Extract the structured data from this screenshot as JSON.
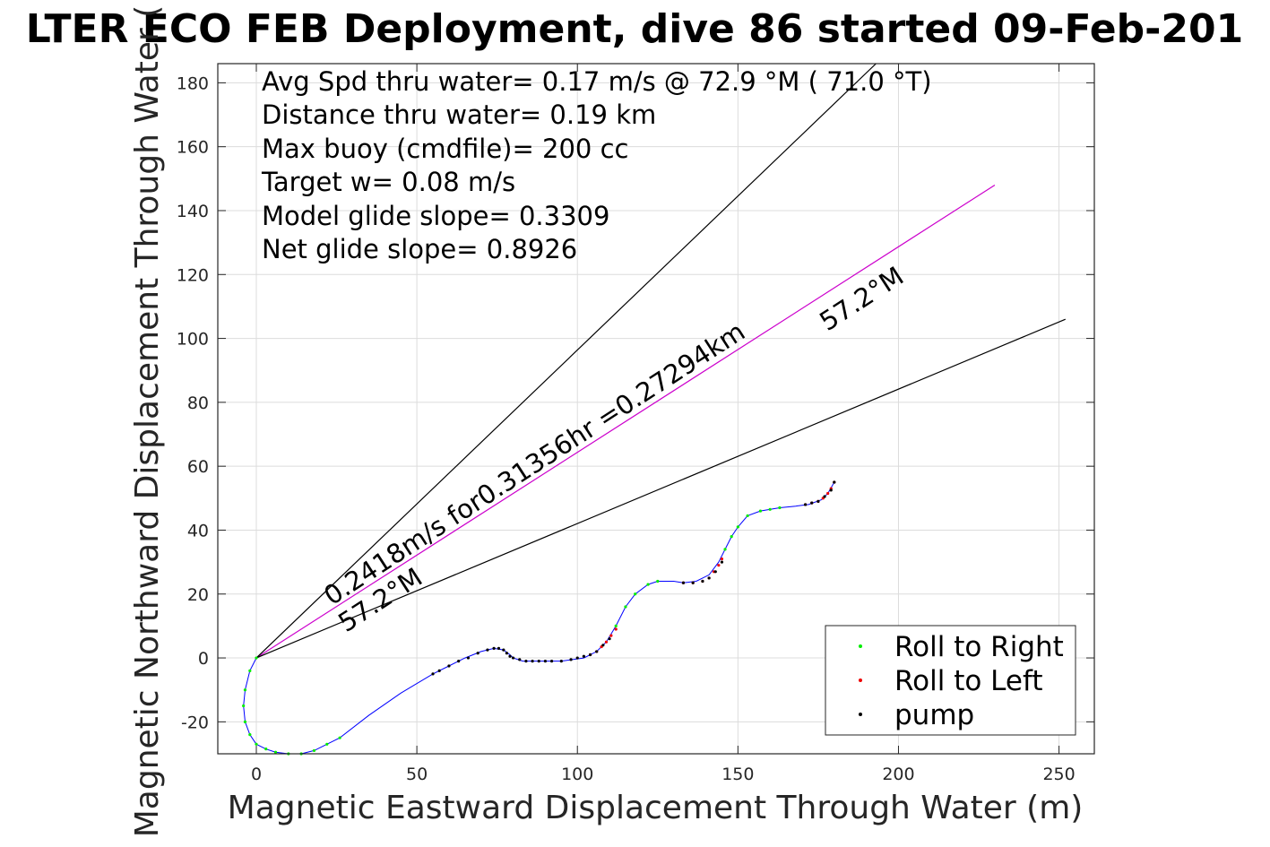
{
  "chart_data": {
    "type": "line",
    "title": "LTER ECO FEB Deployment, dive 86 started 09-Feb-201",
    "xlabel": "Magnetic Eastward Displacement Through Water (m)",
    "ylabel": "Magnetic Northward Displacement Through Water (",
    "xlim": [
      -12,
      261
    ],
    "ylim": [
      -30,
      186
    ],
    "xticks": [
      0,
      50,
      100,
      150,
      200,
      250
    ],
    "yticks": [
      -20,
      0,
      20,
      40,
      60,
      80,
      100,
      120,
      140,
      160,
      180
    ],
    "grid": true,
    "annotations": [
      "Avg Spd thru water=  0.17 m/s @  72.9 °M ( 71.0 °T)",
      "Distance thru water=  0.19 km",
      "Max buoy (cmdfile)= 200 cc",
      "Target w= 0.08 m/s",
      "Model glide slope= 0.3309",
      "Net glide slope= 0.8926"
    ],
    "line_labels": {
      "speed": "0.2418m/s for0.31356hr =0.27294km",
      "heading_upper": "57.2°M",
      "heading_lower": "57.2°M"
    },
    "lines": {
      "heading": {
        "color": "#cc00cc",
        "x": [
          0,
          230
        ],
        "y": [
          0,
          148
        ]
      },
      "bound_upper": {
        "color": "#000000",
        "x": [
          0,
          193
        ],
        "y": [
          0,
          186
        ]
      },
      "bound_lower": {
        "color": "#000000",
        "x": [
          0,
          252
        ],
        "y": [
          0,
          106
        ]
      }
    },
    "track": {
      "color": "#0000ff",
      "x": [
        0,
        -2,
        -3.5,
        -4,
        -3.5,
        -2,
        0,
        3,
        6,
        10,
        14,
        18,
        22,
        26,
        35,
        45,
        55,
        60,
        65,
        70,
        74,
        77,
        79,
        80,
        83,
        88,
        95,
        102,
        106,
        109,
        112,
        115,
        118,
        122,
        125,
        130,
        133,
        137,
        141,
        144,
        146,
        148,
        150,
        153,
        157,
        163,
        168,
        172,
        176,
        178,
        180
      ],
      "y": [
        0,
        -4,
        -10,
        -15,
        -20,
        -24,
        -27,
        -28.5,
        -29.5,
        -30,
        -30,
        -29,
        -27,
        -25,
        -18,
        -11,
        -5,
        -2.5,
        0,
        2,
        3,
        2.5,
        1,
        0,
        -1,
        -1,
        -1,
        0,
        2,
        5,
        10,
        16,
        20,
        23,
        24,
        24,
        23.5,
        24,
        26,
        30,
        34,
        38,
        41,
        44.5,
        46,
        47,
        47.5,
        48,
        49.5,
        51.5,
        55
      ]
    },
    "legend": {
      "position": "bottom-right",
      "entries": [
        {
          "label": "Roll to Right",
          "color": "#00ee00"
        },
        {
          "label": "Roll to Left",
          "color": "#ee0000"
        },
        {
          "label": "pump",
          "color": "#000000"
        }
      ]
    },
    "markers": {
      "roll_right": {
        "x": [
          0,
          -2,
          -3.5,
          -4,
          -3.5,
          -2,
          0,
          3,
          6,
          10,
          14,
          18,
          22,
          26,
          112,
          115,
          118,
          122,
          125,
          146,
          148,
          150,
          153,
          157,
          160,
          163
        ],
        "y": [
          0,
          -4,
          -10,
          -15,
          -20,
          -24,
          -27,
          -28.5,
          -29.5,
          -30,
          -30,
          -29,
          -27,
          -25,
          10,
          16,
          20,
          23,
          24,
          34,
          38,
          41,
          44.5,
          46,
          46.5,
          47
        ]
      },
      "roll_left": {
        "x": [
          104,
          106,
          107.5,
          109,
          110.5,
          112,
          133,
          136,
          139,
          141,
          142.5,
          144,
          145,
          171,
          173,
          175,
          176.5,
          178,
          179,
          180
        ],
        "y": [
          1,
          2,
          3.5,
          5,
          7,
          9,
          23.5,
          23.5,
          24,
          25,
          27,
          29,
          31,
          48,
          48.5,
          49,
          50,
          51.5,
          53,
          55
        ]
      },
      "pump": {
        "x": [
          55,
          57,
          60,
          63,
          66,
          69,
          72,
          74,
          75.5,
          77,
          78,
          79,
          80,
          82,
          84,
          86,
          88,
          90,
          92,
          95,
          98,
          100,
          102,
          104,
          106,
          108,
          110,
          133,
          136,
          139,
          141,
          143,
          145,
          171,
          173,
          175,
          177,
          179,
          180
        ],
        "y": [
          -5,
          -4,
          -2.5,
          -1,
          0,
          1.5,
          2.5,
          3,
          3,
          2.5,
          1.5,
          0.5,
          0,
          -0.5,
          -1,
          -1,
          -1,
          -1,
          -1,
          -1,
          -0.5,
          0,
          0.5,
          1,
          2,
          4,
          6,
          23.5,
          23.5,
          24,
          25,
          27,
          30,
          48,
          48.5,
          49,
          50.5,
          52.5,
          55
        ]
      }
    }
  }
}
